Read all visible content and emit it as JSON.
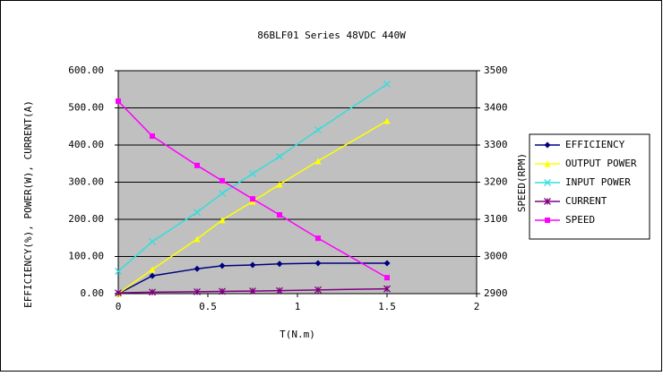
{
  "chart_data": {
    "type": "line",
    "title": "86BLF01 Series 48VDC 440W",
    "xlabel": "T(N.m)",
    "ylabel": "EFFICIENCY(%), POWER(W), CURRENT(A)",
    "y2label": "SPEED(RPM)",
    "x": [
      0,
      0.19,
      0.44,
      0.58,
      0.75,
      0.9,
      1.115,
      1.5
    ],
    "xlim": [
      0,
      2
    ],
    "xticks": [
      0,
      0.5,
      1,
      1.5,
      2
    ],
    "ylim": [
      0,
      600
    ],
    "yticks": [
      {
        "value": 0,
        "label": "0.00"
      },
      {
        "value": 100,
        "label": "100.00"
      },
      {
        "value": 200,
        "label": "200.00"
      },
      {
        "value": 300,
        "label": "300.00"
      },
      {
        "value": 400,
        "label": "400.00"
      },
      {
        "value": 500,
        "label": "500.00"
      },
      {
        "value": 600,
        "label": "600.00"
      }
    ],
    "y2lim": [
      2900,
      3500
    ],
    "y2ticks": [
      2900,
      3000,
      3100,
      3200,
      3300,
      3400,
      3500
    ],
    "grid": true,
    "legend": "right",
    "plot_background": "#c0c0c0",
    "series": [
      {
        "name": "EFFICIENCY",
        "color": "#000080",
        "marker": "diamond",
        "values": [
          0,
          48,
          67,
          75,
          77,
          80,
          82,
          82
        ]
      },
      {
        "name": "OUTPUT POWER",
        "color": "#ffff00",
        "marker": "triangle",
        "values": [
          0,
          65,
          147,
          198,
          248,
          294,
          357,
          465
        ]
      },
      {
        "name": "INPUT POWER",
        "color": "#33dddd",
        "marker": "x",
        "values": [
          60,
          140,
          219,
          270,
          323,
          369,
          441,
          564
        ]
      },
      {
        "name": "CURRENT",
        "color": "#800080",
        "marker": "star",
        "values": [
          2,
          4,
          5,
          6,
          7,
          8,
          10,
          13
        ]
      },
      {
        "name": "SPEED",
        "color": "#ff00ff",
        "marker": "square",
        "axis": "y2",
        "values": [
          3418,
          3324,
          3245,
          3204,
          3155,
          3112,
          3049,
          2943
        ]
      }
    ]
  }
}
